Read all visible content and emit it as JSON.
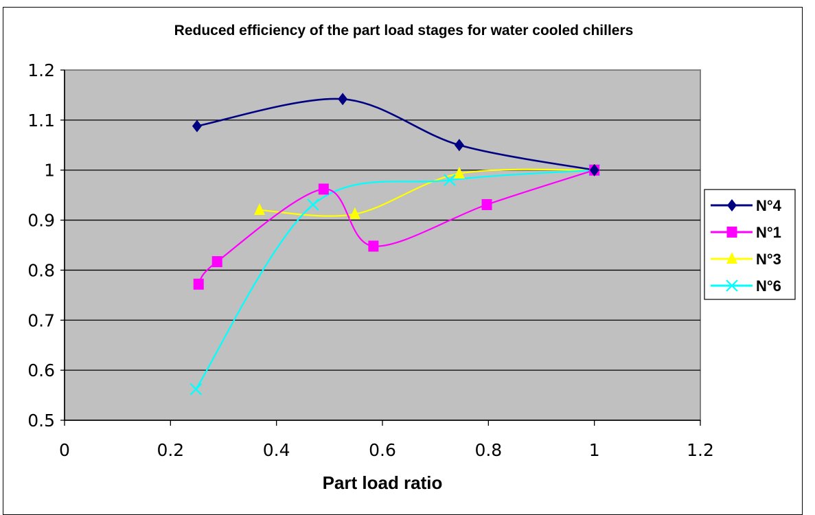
{
  "chart_data": {
    "type": "line",
    "title": "Reduced efficiency of the part load stages for water cooled chillers",
    "xlabel": "Part load ratio",
    "ylabel": "",
    "xlim": [
      0,
      1.2
    ],
    "ylim": [
      0.5,
      1.2
    ],
    "xticks": [
      "0",
      "0.2",
      "0.4",
      "0.6",
      "0.8",
      "1",
      "1.2"
    ],
    "yticks": [
      "0.5",
      "0.6",
      "0.7",
      "0.8",
      "0.9",
      "1",
      "1.1",
      "1.2"
    ],
    "grid": "horizontal",
    "plot_background": "#c0c0c0",
    "legend_position": "right",
    "smoothed": true,
    "series": [
      {
        "name": "N°4",
        "color": "#000080",
        "marker": "diamond",
        "x": [
          0.25,
          0.525,
          0.745,
          1.0
        ],
        "y": [
          1.088,
          1.142,
          1.05,
          1.0
        ]
      },
      {
        "name": "N°1",
        "color": "#ff00ff",
        "marker": "square",
        "x": [
          0.253,
          0.288,
          0.489,
          0.583,
          0.797,
          1.0
        ],
        "y": [
          0.772,
          0.817,
          0.962,
          0.848,
          0.931,
          1.0
        ]
      },
      {
        "name": "N°3",
        "color": "#ffff00",
        "marker": "triangle",
        "x": [
          0.368,
          0.548,
          0.745,
          1.0
        ],
        "y": [
          0.92,
          0.912,
          0.993,
          1.0
        ]
      },
      {
        "name": "N°6",
        "color": "#00ffff",
        "marker": "x",
        "x": [
          0.248,
          0.469,
          0.727,
          1.0
        ],
        "y": [
          0.562,
          0.931,
          0.98,
          1.0
        ]
      }
    ]
  }
}
